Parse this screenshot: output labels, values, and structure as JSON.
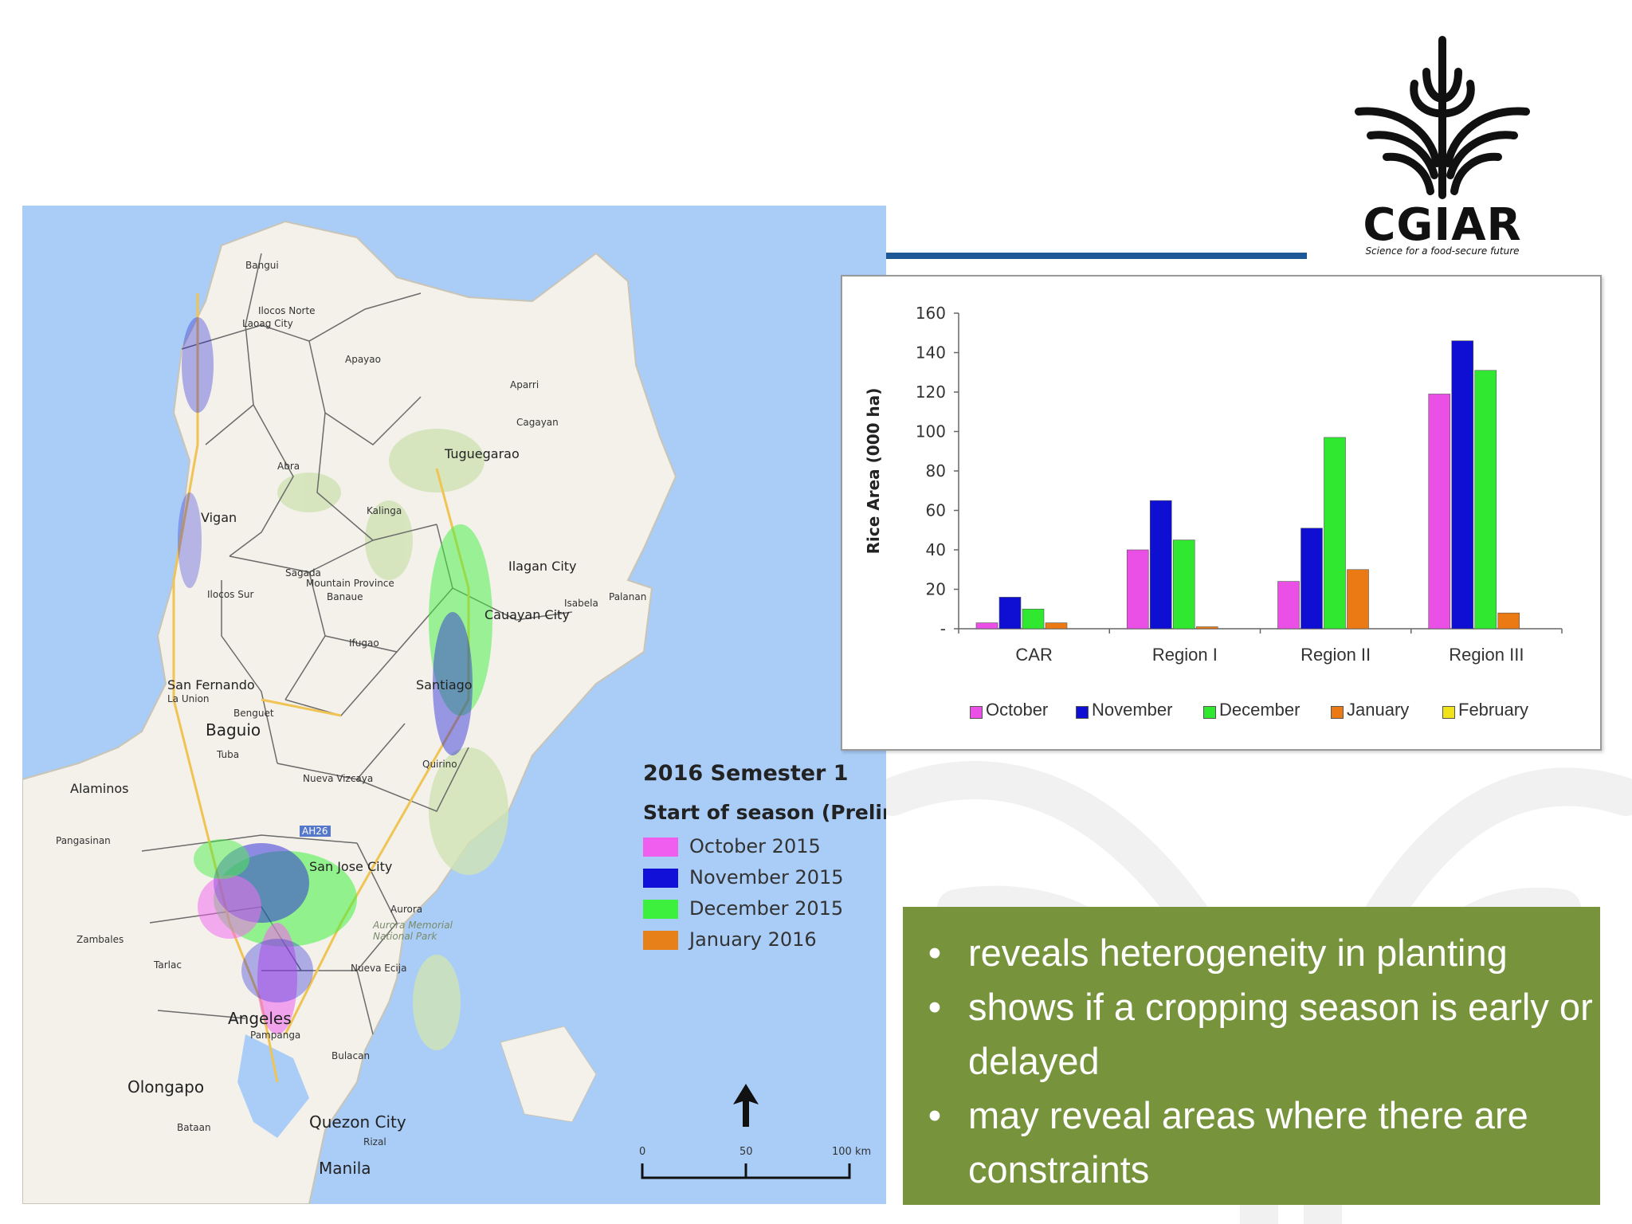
{
  "logo": {
    "name": "CGIAR",
    "tagline": "Science for a food-secure future"
  },
  "map": {
    "places": [
      "Bangui",
      "Ilocos Norte",
      "Laoag City",
      "Apayao",
      "Aparri",
      "Cagayan",
      "Abra",
      "Kalinga",
      "Tuguegarao",
      "Vigan",
      "Sagada",
      "Mountain Province",
      "Ilocos Sur",
      "Banaue",
      "Ilagan City",
      "Isabela",
      "Palanan",
      "Cauayan City",
      "Ifugao",
      "Santiago",
      "San Fernando",
      "La Union",
      "Benguet",
      "Baguio",
      "Tuba",
      "Quirino",
      "Nueva Vizcaya",
      "Alaminos",
      "Pangasinan",
      "AH26",
      "San Jose City",
      "Aurora",
      "Aurora Memorial National Park",
      "Zambales",
      "Tarlac",
      "Nueva Ecija",
      "Angeles",
      "Pampanga",
      "Bulacan",
      "Olongapo",
      "Bataan",
      "Quezon City",
      "Rizal",
      "Manila"
    ],
    "legend": {
      "title": "2016 Semester 1",
      "subtitle": "Start of season (Prelimin",
      "items": [
        {
          "label": "October 2015",
          "color": "#f05ef0"
        },
        {
          "label": "November 2015",
          "color": "#1010d8"
        },
        {
          "label": "December 2015",
          "color": "#3ef03e"
        },
        {
          "label": "January 2016",
          "color": "#e8801a"
        }
      ]
    },
    "scale": {
      "labels": [
        "0",
        "50",
        "100 km"
      ]
    },
    "north_arrow": "north-arrow-icon"
  },
  "chart_data": {
    "type": "bar",
    "categories": [
      "CAR",
      "Region I",
      "Region II",
      "Region III"
    ],
    "series": [
      {
        "name": "October",
        "color": "#ea4fe6",
        "values": [
          3,
          40,
          24,
          119
        ]
      },
      {
        "name": "November",
        "color": "#0f0fd4",
        "values": [
          16,
          65,
          51,
          146
        ]
      },
      {
        "name": "December",
        "color": "#30e830",
        "values": [
          10,
          45,
          97,
          131
        ]
      },
      {
        "name": "January",
        "color": "#ec7a14",
        "values": [
          3,
          1,
          30,
          8
        ]
      },
      {
        "name": "February",
        "color": "#f2e21a",
        "values": [
          0,
          0,
          0,
          0
        ]
      }
    ],
    "ylabel": "Rice Area (000 ha)",
    "xlabel": "",
    "ylim": [
      0,
      160
    ],
    "yticks": [
      "-",
      "20",
      "40",
      "60",
      "80",
      "100",
      "120",
      "140",
      "160"
    ],
    "grid": false,
    "legend_position": "bottom"
  },
  "info": {
    "bullets": [
      "reveals heterogeneity in planting",
      "shows if a cropping season is early or delayed",
      "may reveal areas where there are constraints"
    ],
    "bullet_symbol": "•"
  }
}
